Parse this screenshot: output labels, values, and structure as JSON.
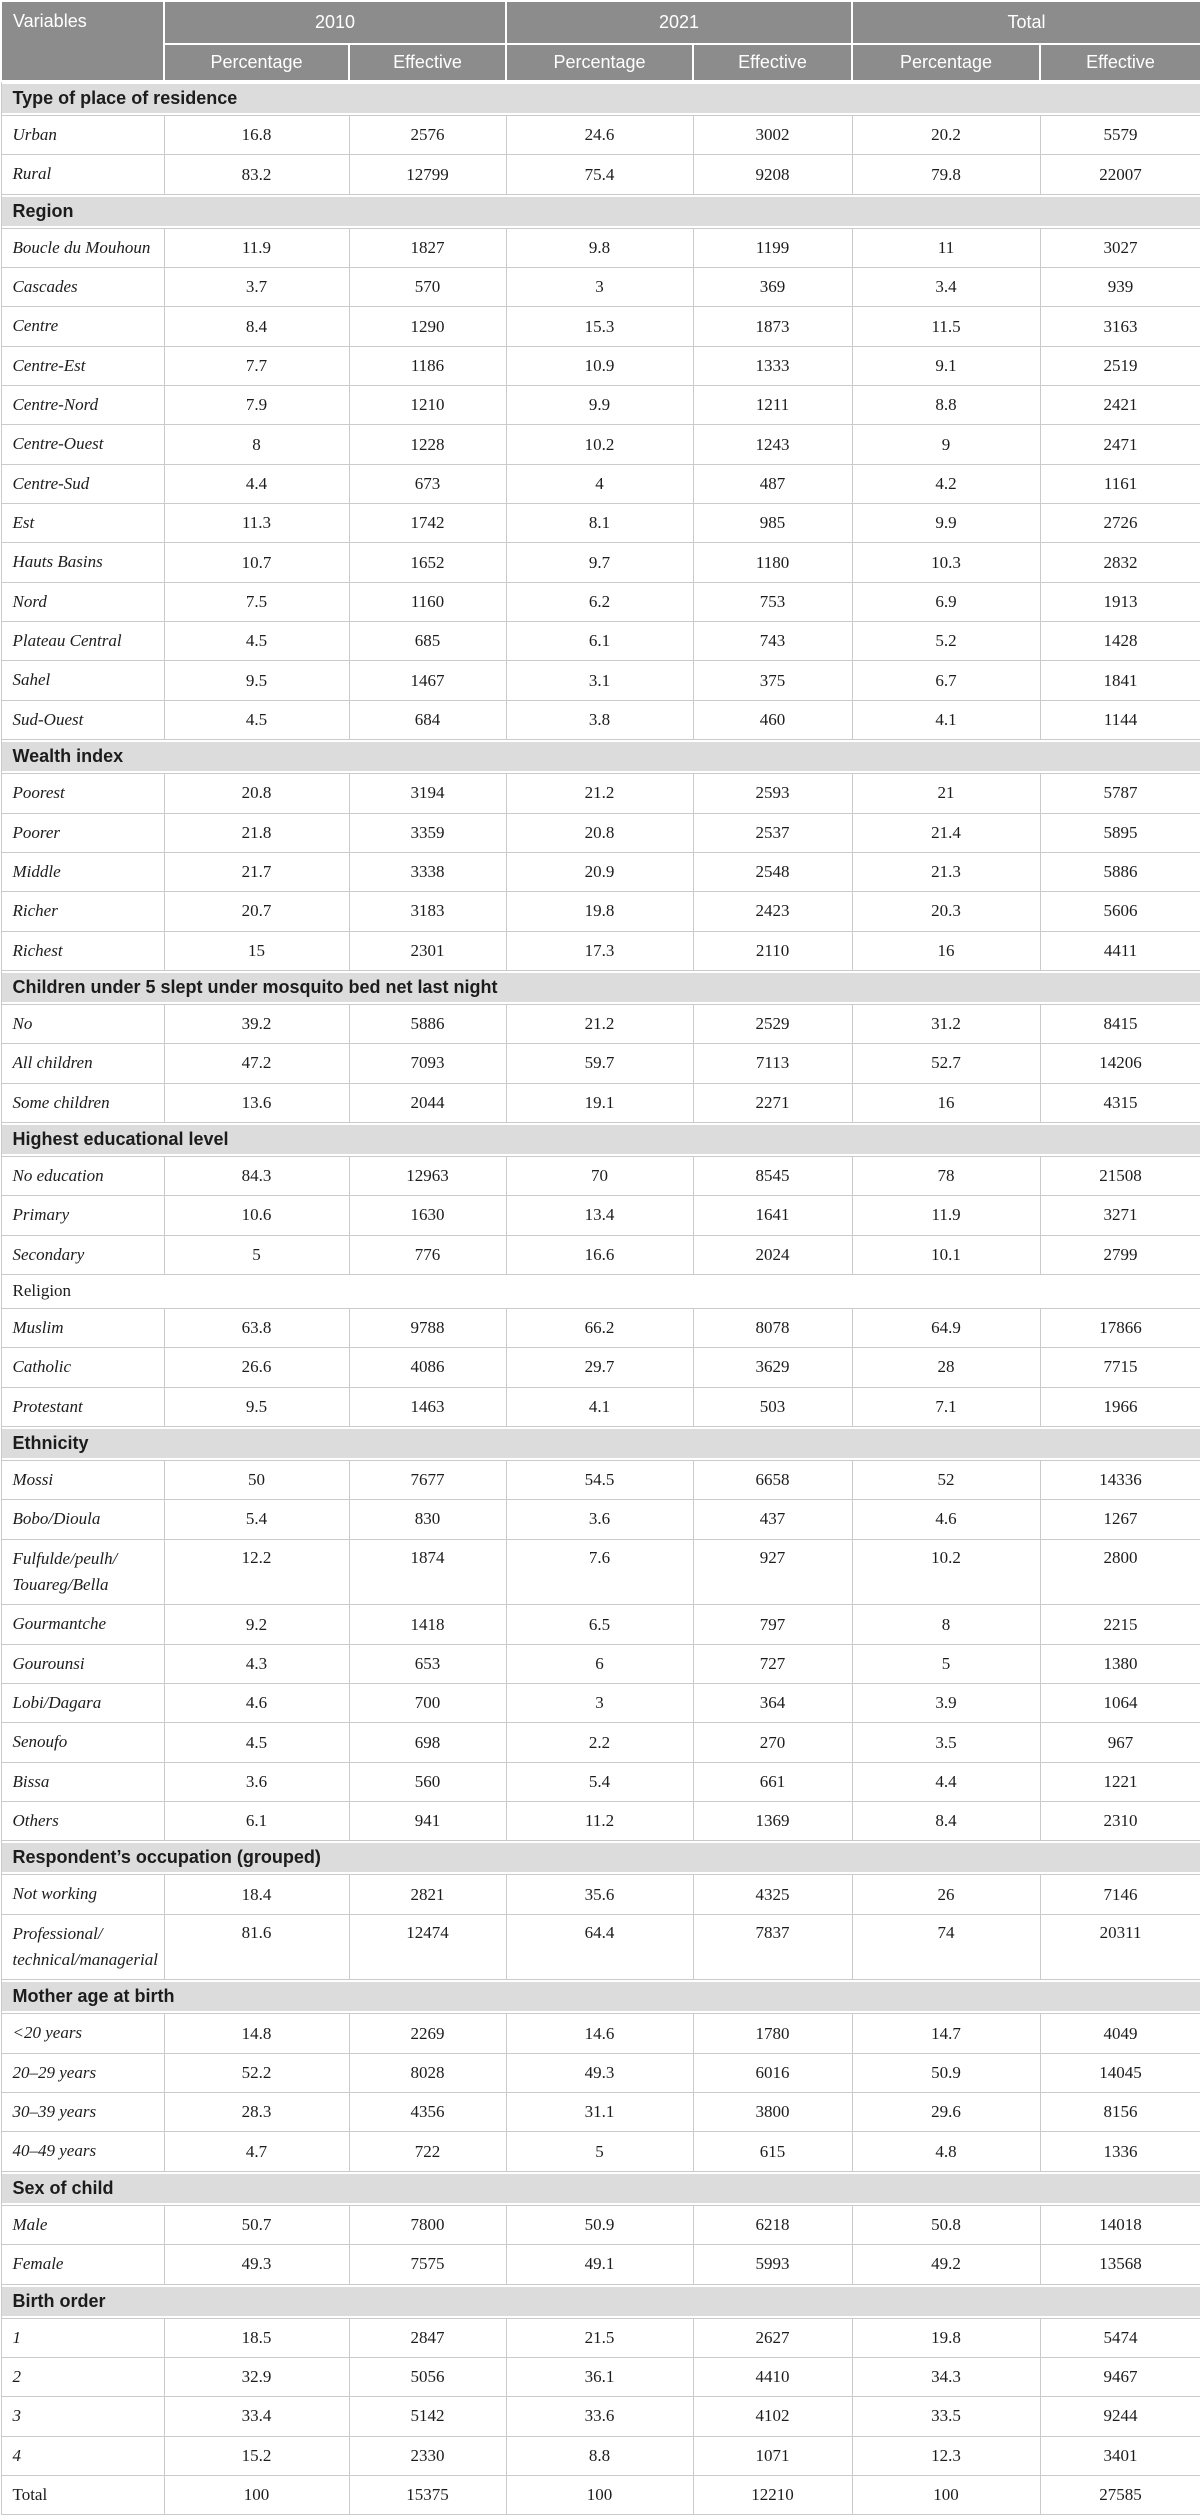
{
  "table": {
    "header": {
      "variables_label": "Variables",
      "col_groups": [
        {
          "label": "2010"
        },
        {
          "label": "2021"
        },
        {
          "label": "Total"
        }
      ],
      "sub_headers": [
        "Percentage",
        "Effective",
        "Percentage",
        "Effective",
        "Percentage",
        "Effective"
      ]
    },
    "sections": [
      {
        "title": "Type of place of residence",
        "style": "band",
        "rows": [
          {
            "label": "Urban",
            "values": [
              "16.8",
              "2576",
              "24.6",
              "3002",
              "20.2",
              "5579"
            ]
          },
          {
            "label": "Rural",
            "values": [
              "83.2",
              "12799",
              "75.4",
              "9208",
              "79.8",
              "22007"
            ]
          }
        ]
      },
      {
        "title": "Region",
        "style": "band",
        "rows": [
          {
            "label": "Boucle du Mouhoun",
            "values": [
              "11.9",
              "1827",
              "9.8",
              "1199",
              "11",
              "3027"
            ]
          },
          {
            "label": "Cascades",
            "values": [
              "3.7",
              "570",
              "3",
              "369",
              "3.4",
              "939"
            ]
          },
          {
            "label": "Centre",
            "values": [
              "8.4",
              "1290",
              "15.3",
              "1873",
              "11.5",
              "3163"
            ]
          },
          {
            "label": "Centre-Est",
            "values": [
              "7.7",
              "1186",
              "10.9",
              "1333",
              "9.1",
              "2519"
            ]
          },
          {
            "label": "Centre-Nord",
            "values": [
              "7.9",
              "1210",
              "9.9",
              "1211",
              "8.8",
              "2421"
            ]
          },
          {
            "label": "Centre-Ouest",
            "values": [
              "8",
              "1228",
              "10.2",
              "1243",
              "9",
              "2471"
            ]
          },
          {
            "label": "Centre-Sud",
            "values": [
              "4.4",
              "673",
              "4",
              "487",
              "4.2",
              "1161"
            ]
          },
          {
            "label": "Est",
            "values": [
              "11.3",
              "1742",
              "8.1",
              "985",
              "9.9",
              "2726"
            ]
          },
          {
            "label": "Hauts Basins",
            "values": [
              "10.7",
              "1652",
              "9.7",
              "1180",
              "10.3",
              "2832"
            ]
          },
          {
            "label": "Nord",
            "values": [
              "7.5",
              "1160",
              "6.2",
              "753",
              "6.9",
              "1913"
            ]
          },
          {
            "label": "Plateau Central",
            "values": [
              "4.5",
              "685",
              "6.1",
              "743",
              "5.2",
              "1428"
            ]
          },
          {
            "label": "Sahel",
            "values": [
              "9.5",
              "1467",
              "3.1",
              "375",
              "6.7",
              "1841"
            ]
          },
          {
            "label": "Sud-Ouest",
            "values": [
              "4.5",
              "684",
              "3.8",
              "460",
              "4.1",
              "1144"
            ]
          }
        ]
      },
      {
        "title": "Wealth index",
        "style": "band",
        "rows": [
          {
            "label": "Poorest",
            "values": [
              "20.8",
              "3194",
              "21.2",
              "2593",
              "21",
              "5787"
            ]
          },
          {
            "label": "Poorer",
            "values": [
              "21.8",
              "3359",
              "20.8",
              "2537",
              "21.4",
              "5895"
            ]
          },
          {
            "label": "Middle",
            "values": [
              "21.7",
              "3338",
              "20.9",
              "2548",
              "21.3",
              "5886"
            ]
          },
          {
            "label": "Richer",
            "values": [
              "20.7",
              "3183",
              "19.8",
              "2423",
              "20.3",
              "5606"
            ]
          },
          {
            "label": "Richest",
            "values": [
              "15",
              "2301",
              "17.3",
              "2110",
              "16",
              "4411"
            ]
          }
        ]
      },
      {
        "title": "Children under 5 slept under mosquito bed net last night",
        "style": "band",
        "rows": [
          {
            "label": "No",
            "values": [
              "39.2",
              "5886",
              "21.2",
              "2529",
              "31.2",
              "8415"
            ]
          },
          {
            "label": "All children",
            "values": [
              "47.2",
              "7093",
              "59.7",
              "7113",
              "52.7",
              "14206"
            ]
          },
          {
            "label": "Some children",
            "values": [
              "13.6",
              "2044",
              "19.1",
              "2271",
              "16",
              "4315"
            ]
          }
        ]
      },
      {
        "title": "Highest educational level",
        "style": "band",
        "rows": [
          {
            "label": "No education",
            "values": [
              "84.3",
              "12963",
              "70",
              "8545",
              "78",
              "21508"
            ]
          },
          {
            "label": "Primary",
            "values": [
              "10.6",
              "1630",
              "13.4",
              "1641",
              "11.9",
              "3271"
            ]
          },
          {
            "label": "Secondary",
            "values": [
              "5",
              "776",
              "16.6",
              "2024",
              "10.1",
              "2799"
            ]
          }
        ]
      },
      {
        "title": "Religion",
        "style": "plain",
        "rows": [
          {
            "label": "Muslim",
            "values": [
              "63.8",
              "9788",
              "66.2",
              "8078",
              "64.9",
              "17866"
            ]
          },
          {
            "label": "Catholic",
            "values": [
              "26.6",
              "4086",
              "29.7",
              "3629",
              "28",
              "7715"
            ]
          },
          {
            "label": "Protestant",
            "values": [
              "9.5",
              "1463",
              "4.1",
              "503",
              "7.1",
              "1966"
            ]
          }
        ]
      },
      {
        "title": "Ethnicity",
        "style": "band",
        "rows": [
          {
            "label": "Mossi",
            "values": [
              "50",
              "7677",
              "54.5",
              "6658",
              "52",
              "14336"
            ]
          },
          {
            "label": "Bobo/Dioula",
            "values": [
              "5.4",
              "830",
              "3.6",
              "437",
              "4.6",
              "1267"
            ]
          },
          {
            "label": "Fulfulde/peulh/\nTouareg/Bella",
            "values": [
              "12.2",
              "1874",
              "7.6",
              "927",
              "10.2",
              "2800"
            ]
          },
          {
            "label": "Gourmantche",
            "values": [
              "9.2",
              "1418",
              "6.5",
              "797",
              "8",
              "2215"
            ]
          },
          {
            "label": "Gourounsi",
            "values": [
              "4.3",
              "653",
              "6",
              "727",
              "5",
              "1380"
            ]
          },
          {
            "label": "Lobi/Dagara",
            "values": [
              "4.6",
              "700",
              "3",
              "364",
              "3.9",
              "1064"
            ]
          },
          {
            "label": "Senoufo",
            "values": [
              "4.5",
              "698",
              "2.2",
              "270",
              "3.5",
              "967"
            ]
          },
          {
            "label": "Bissa",
            "values": [
              "3.6",
              "560",
              "5.4",
              "661",
              "4.4",
              "1221"
            ]
          },
          {
            "label": "Others",
            "values": [
              "6.1",
              "941",
              "11.2",
              "1369",
              "8.4",
              "2310"
            ]
          }
        ]
      },
      {
        "title": "Respondent’s occupation (grouped)",
        "style": "band",
        "rows": [
          {
            "label": "Not working",
            "values": [
              "18.4",
              "2821",
              "35.6",
              "4325",
              "26",
              "7146"
            ]
          },
          {
            "label": "Professional/\ntechnical/managerial",
            "values": [
              "81.6",
              "12474",
              "64.4",
              "7837",
              "74",
              "20311"
            ]
          }
        ]
      },
      {
        "title": "Mother age at birth",
        "style": "band",
        "rows": [
          {
            "label": "<20 years",
            "values": [
              "14.8",
              "2269",
              "14.6",
              "1780",
              "14.7",
              "4049"
            ]
          },
          {
            "label": "20–29 years",
            "values": [
              "52.2",
              "8028",
              "49.3",
              "6016",
              "50.9",
              "14045"
            ]
          },
          {
            "label": "30–39 years",
            "values": [
              "28.3",
              "4356",
              "31.1",
              "3800",
              "29.6",
              "8156"
            ]
          },
          {
            "label": "40–49 years",
            "values": [
              "4.7",
              "722",
              "5",
              "615",
              "4.8",
              "1336"
            ]
          }
        ]
      },
      {
        "title": "Sex of child",
        "style": "band",
        "rows": [
          {
            "label": "Male",
            "values": [
              "50.7",
              "7800",
              "50.9",
              "6218",
              "50.8",
              "14018"
            ]
          },
          {
            "label": "Female",
            "values": [
              "49.3",
              "7575",
              "49.1",
              "5993",
              "49.2",
              "13568"
            ]
          }
        ]
      },
      {
        "title": "Birth order",
        "style": "band",
        "rows": [
          {
            "label": "1",
            "values": [
              "18.5",
              "2847",
              "21.5",
              "2627",
              "19.8",
              "5474"
            ]
          },
          {
            "label": "2",
            "values": [
              "32.9",
              "5056",
              "36.1",
              "4410",
              "34.3",
              "9467"
            ]
          },
          {
            "label": "3",
            "values": [
              "33.4",
              "5142",
              "33.6",
              "4102",
              "33.5",
              "9244"
            ]
          },
          {
            "label": "4",
            "values": [
              "15.2",
              "2330",
              "8.8",
              "1071",
              "12.3",
              "3401"
            ]
          },
          {
            "label": "Total",
            "upright": true,
            "values": [
              "100",
              "15375",
              "100",
              "12210",
              "100",
              "27585"
            ]
          }
        ]
      }
    ],
    "colors": {
      "header_bg": "#8c8c8c",
      "header_text": "#ffffff",
      "band_bg": "#dcdcdc",
      "border": "#cbcbcb",
      "text": "#1c1c1c"
    }
  }
}
